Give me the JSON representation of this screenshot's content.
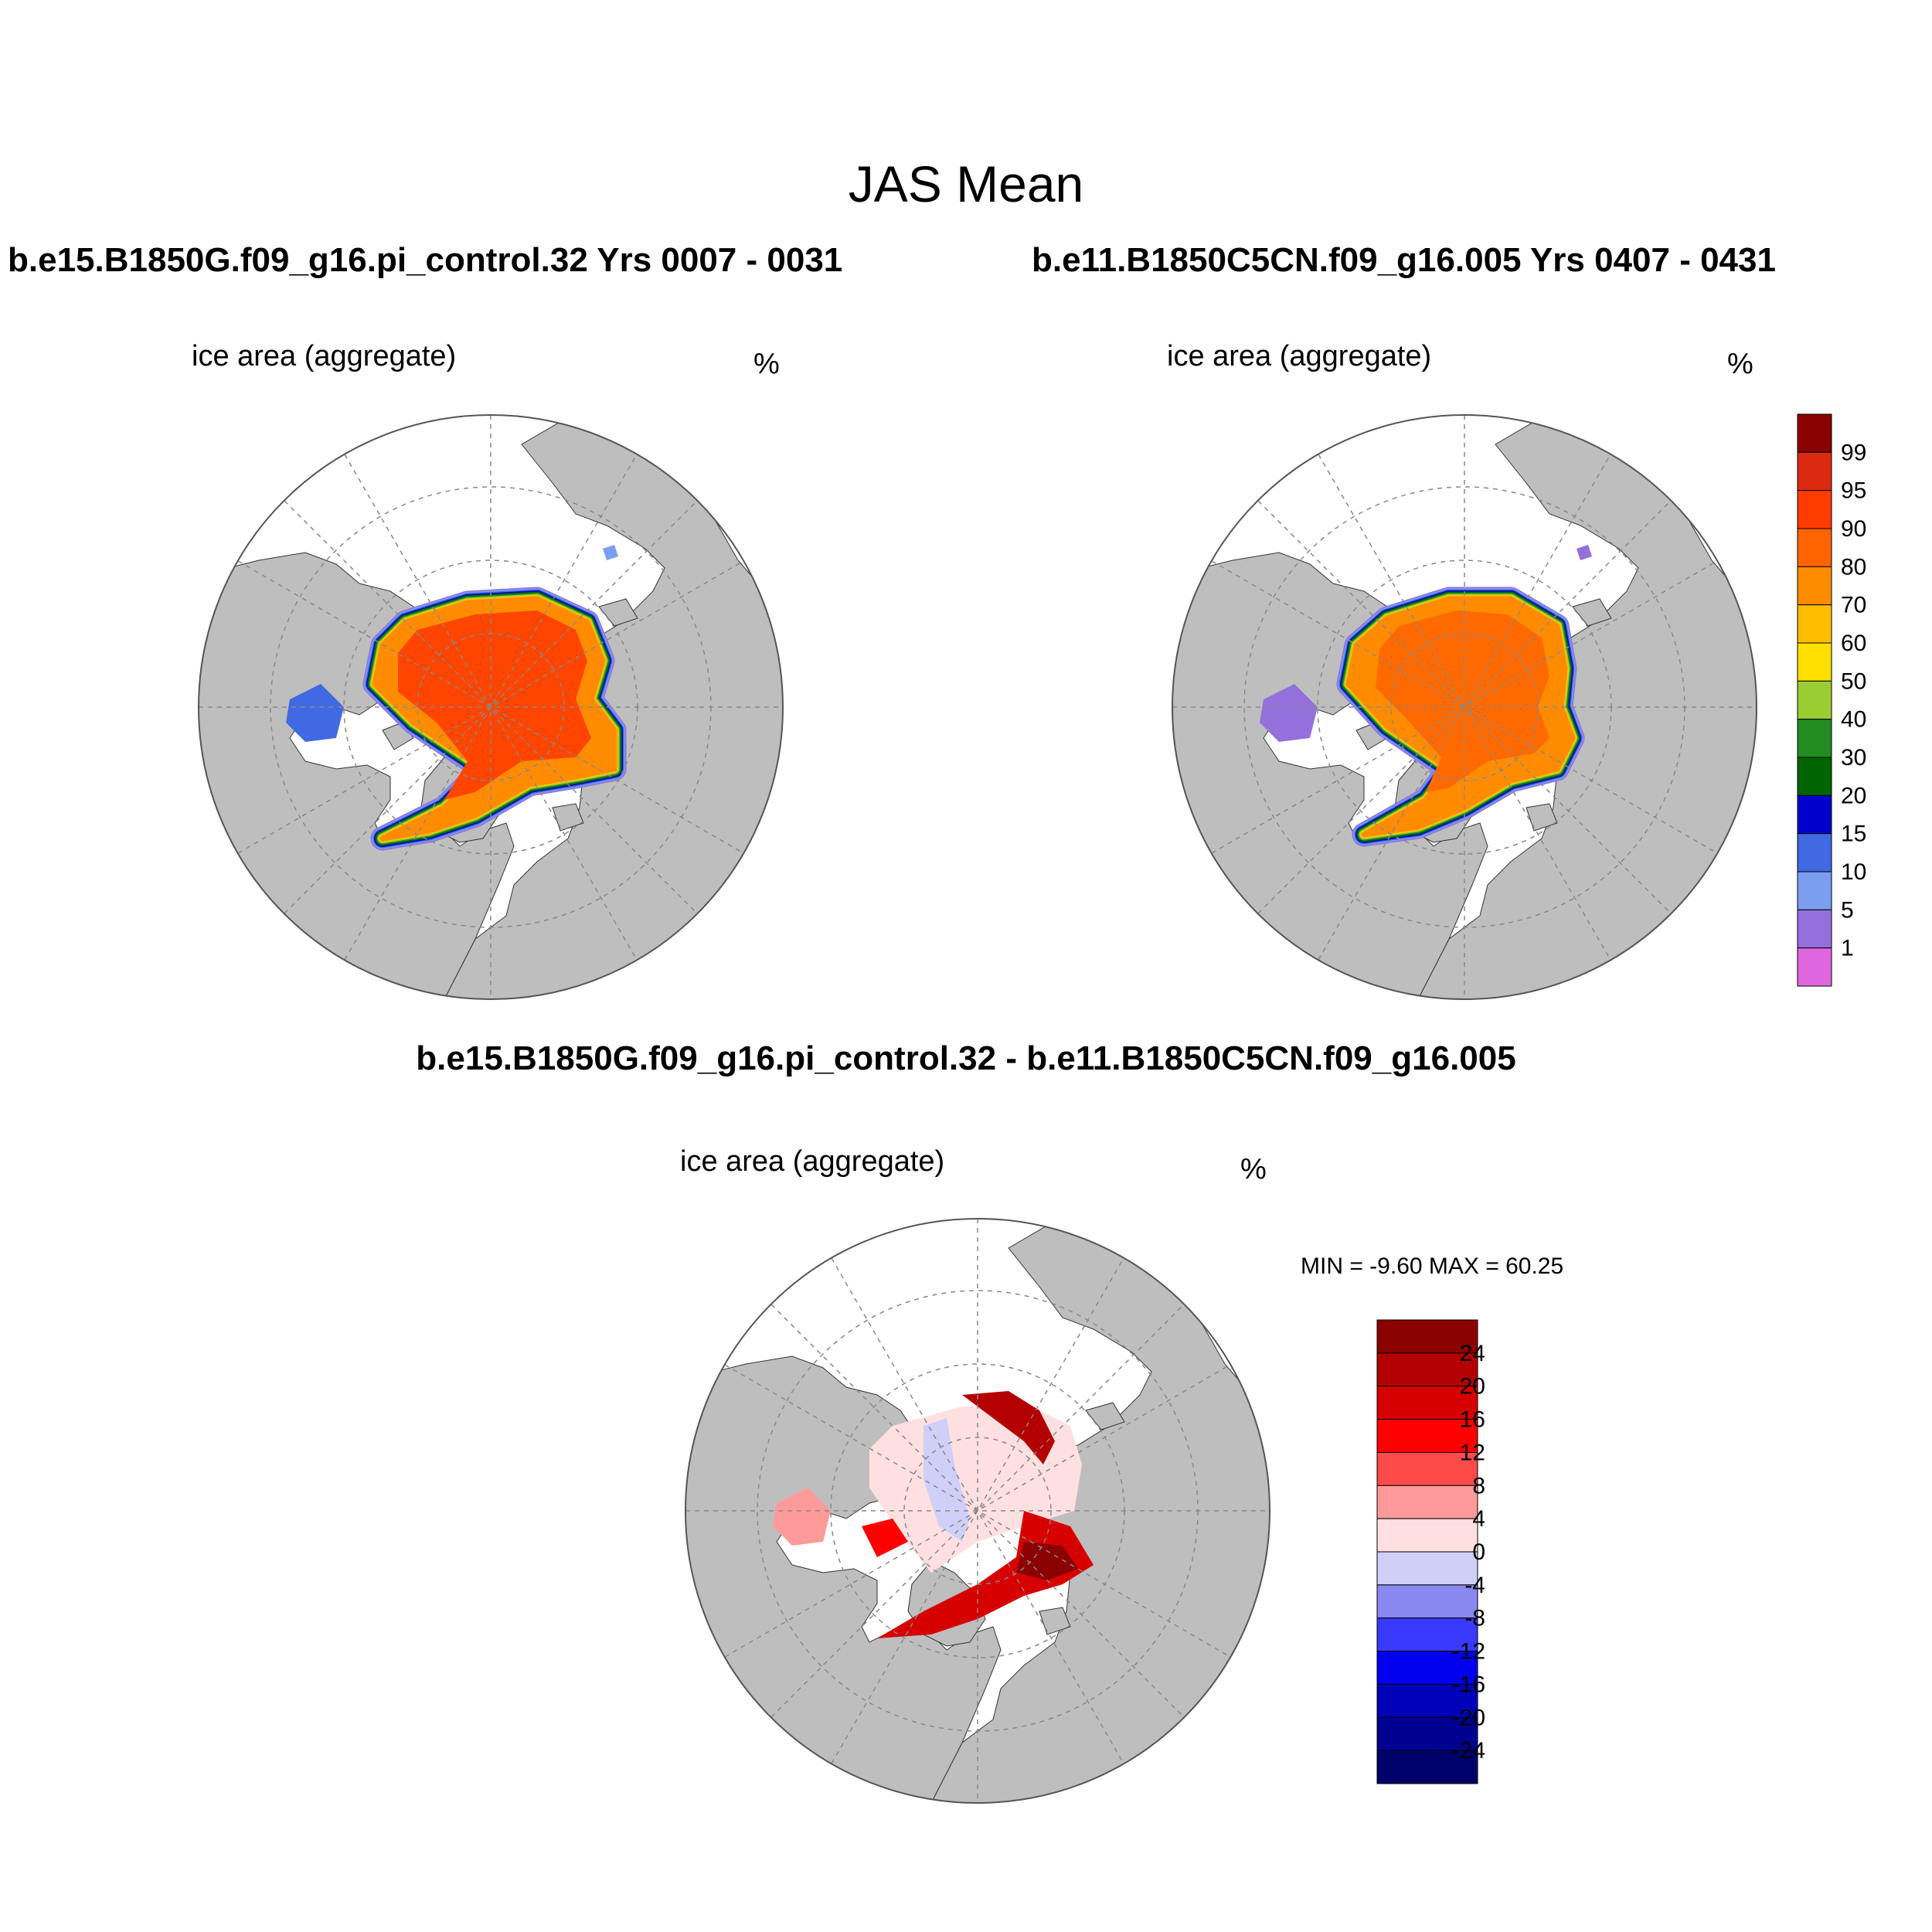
{
  "title": "JAS Mean",
  "panels": [
    {
      "case_title": "b.e15.B1850G.f09_g16.pi_control.32  Yrs 0007 - 0031",
      "variable": "ice area  (aggregate)",
      "units": "%",
      "ice_fill_color": "#ff4500",
      "edge_colors": [
        "#ff8c00",
        "#ffc400",
        "#9acd32",
        "#228b22",
        "#006400",
        "#0000cd",
        "#4169e1",
        "#7b9ef0",
        "#9370db"
      ]
    },
    {
      "case_title": "b.e11.B1850C5CN.f09_g16.005  Yrs 0407 - 0431",
      "variable": "ice area  (aggregate)",
      "units": "%",
      "ice_fill_color": "#ff6a00",
      "edge_colors": [
        "#ff8c00",
        "#ffc400",
        "#9acd32",
        "#228b22",
        "#006400",
        "#0000cd",
        "#4169e1",
        "#7b9ef0",
        "#9370db"
      ]
    }
  ],
  "difference": {
    "title": "b.e15.B1850G.f09_g16.pi_control.32 - b.e11.B1850C5CN.f09_g16.005",
    "variable": "ice area  (aggregate)",
    "units": "%",
    "minmax": "MIN =  -9.60 MAX =  60.25"
  },
  "colorbar_ice": {
    "labels": [
      "99",
      "95",
      "90",
      "80",
      "70",
      "60",
      "50",
      "40",
      "30",
      "20",
      "15",
      "10",
      "5",
      "1"
    ],
    "colors": [
      "#8b0000",
      "#dc2a10",
      "#ff3c00",
      "#ff6400",
      "#ff8c00",
      "#ffbf00",
      "#ffe000",
      "#9acd32",
      "#228b22",
      "#006400",
      "#0000cd",
      "#4169e1",
      "#7b9ef0",
      "#9370db",
      "#e066e0"
    ]
  },
  "colorbar_diff": {
    "labels": [
      "24",
      "20",
      "16",
      "12",
      "8",
      "4",
      "0",
      "-4",
      "-8",
      "-12",
      "-16",
      "-20",
      "-24"
    ],
    "colors": [
      "#8b0000",
      "#b40000",
      "#d70000",
      "#ff0000",
      "#ff4a4a",
      "#ff9a9a",
      "#ffe0e0",
      "#cfcff8",
      "#8888f0",
      "#3a3aff",
      "#0000ee",
      "#0000b8",
      "#000090",
      "#00006a"
    ]
  },
  "colors": {
    "land": "#bebebe",
    "ocean": "#ffffff",
    "grid": "#888888"
  }
}
